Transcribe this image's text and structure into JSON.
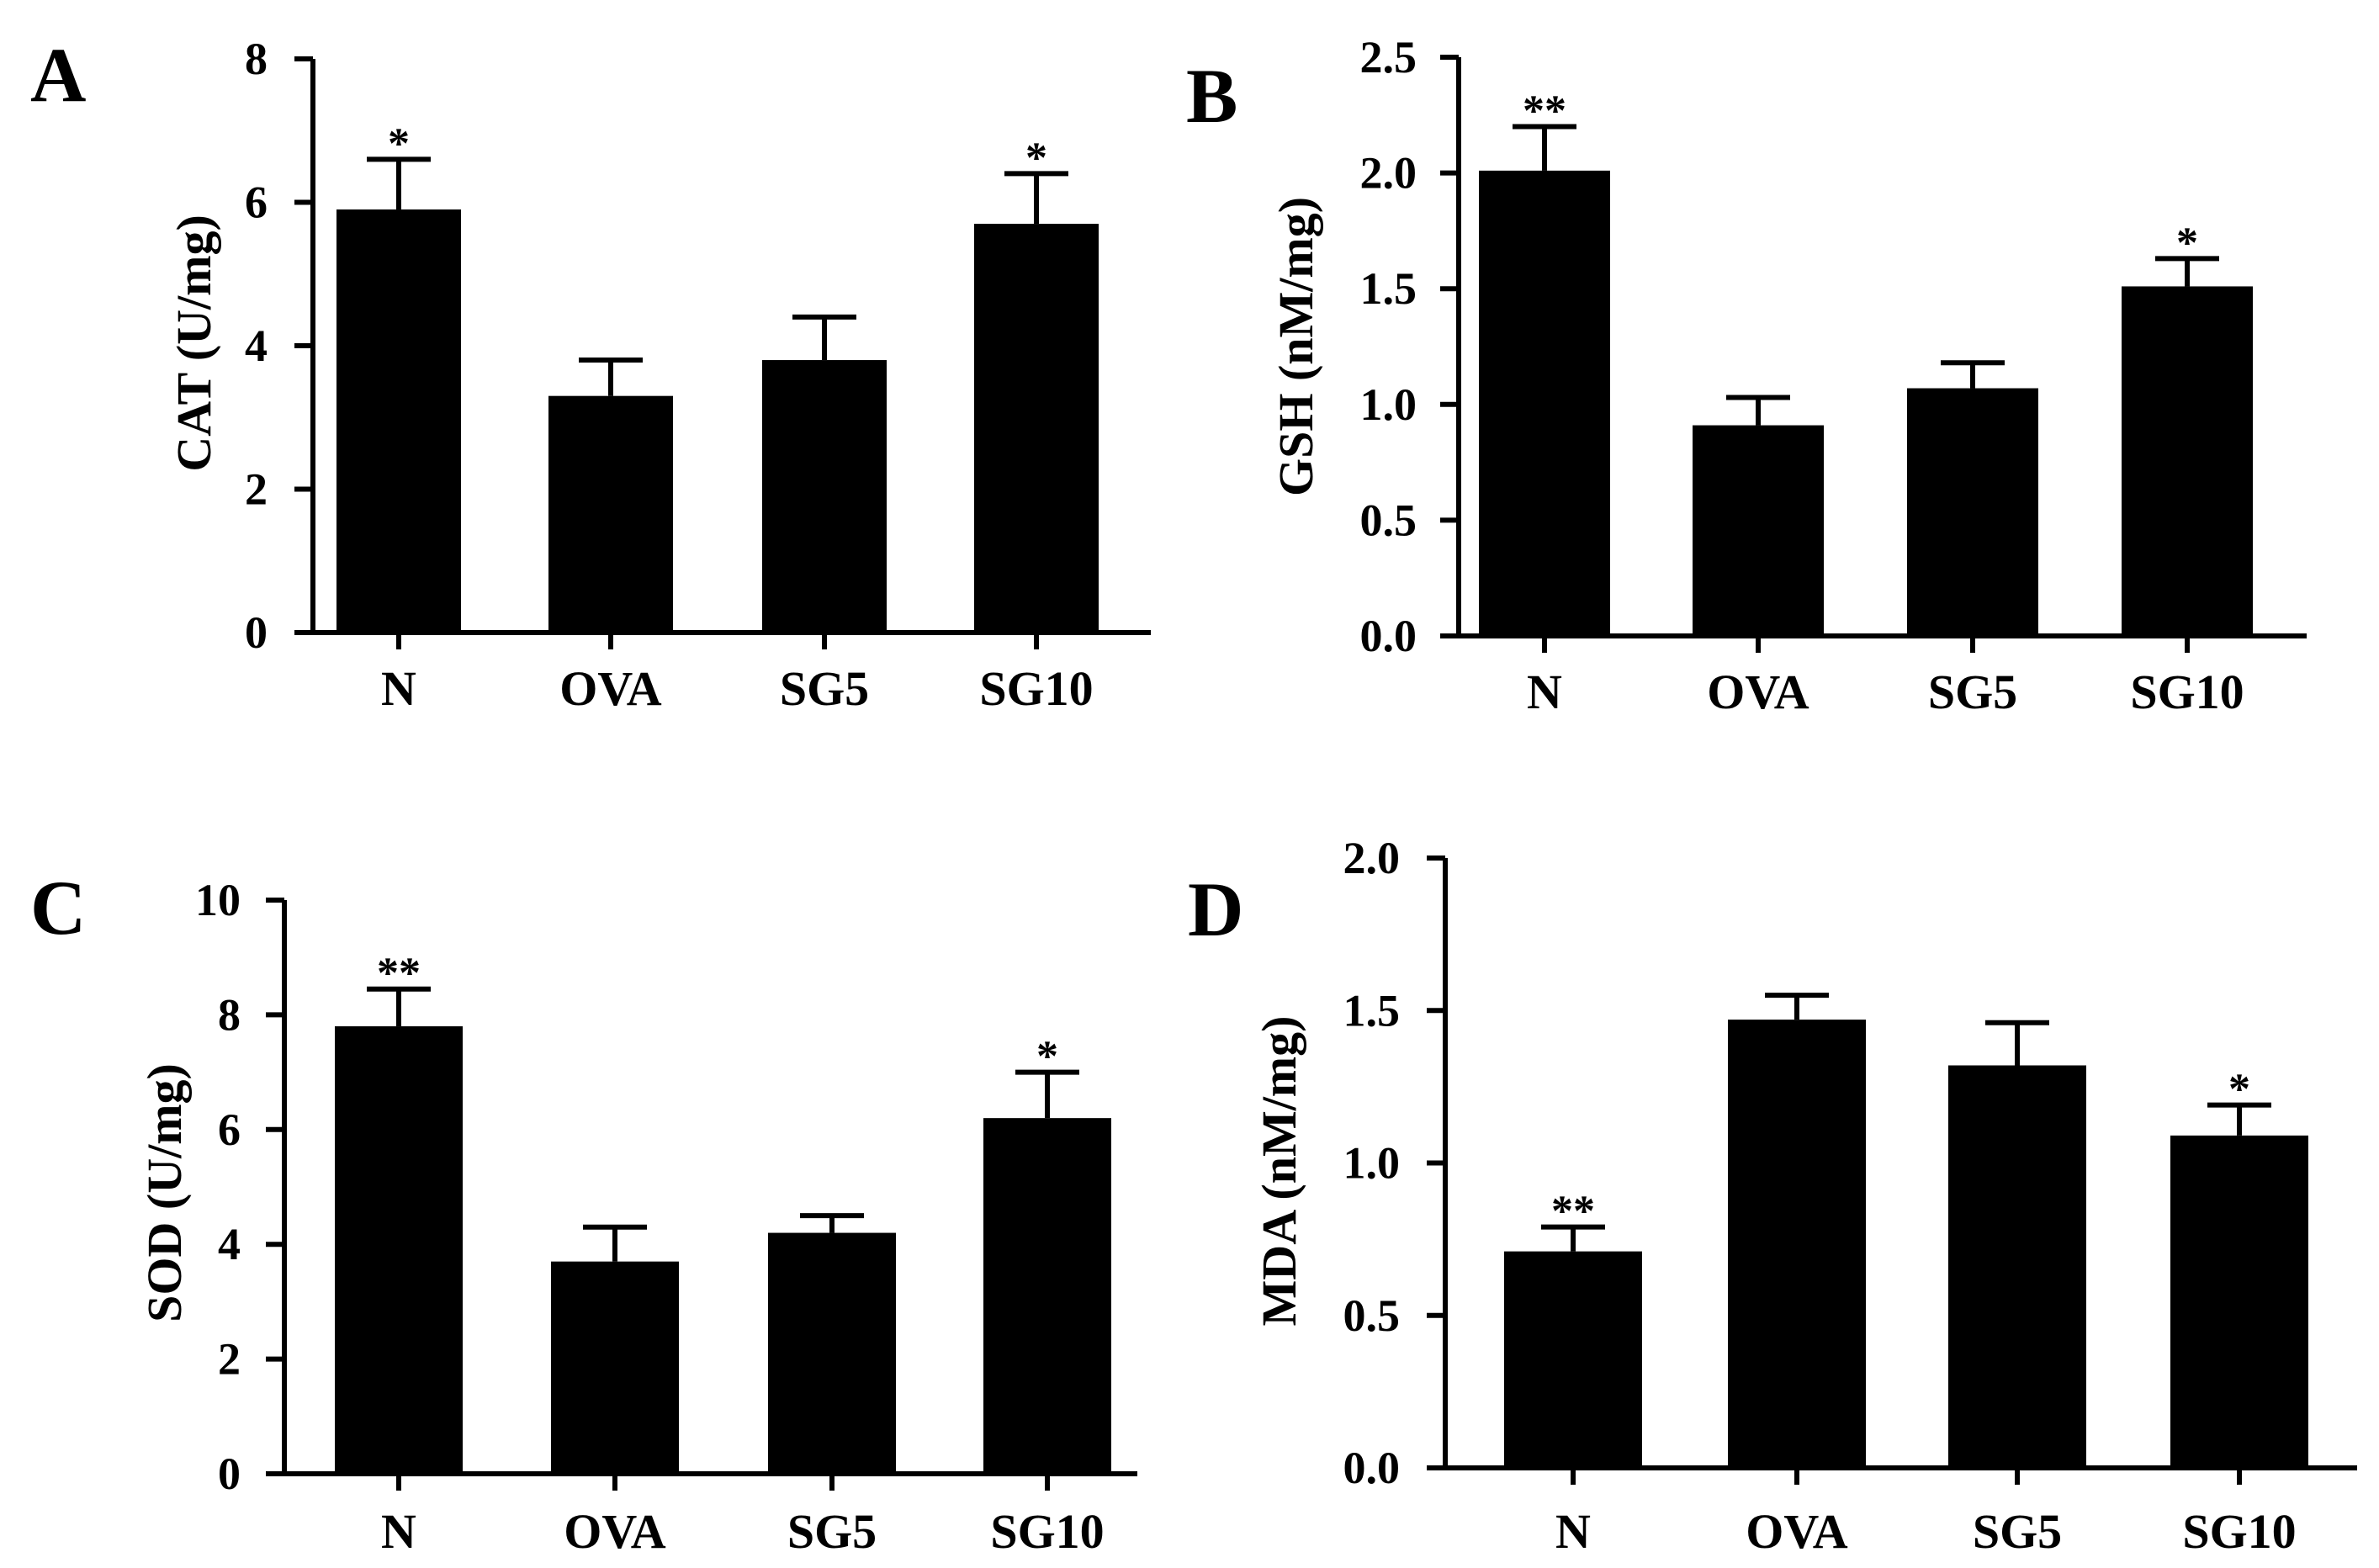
{
  "figure": {
    "colors": {
      "bar": "#000000",
      "axis": "#000000",
      "background": "#ffffff"
    }
  },
  "chart_data": [
    {
      "panel": "A",
      "type": "bar",
      "categories": [
        "N",
        "OVA",
        "SG5",
        "SG10"
      ],
      "values": [
        5.9,
        3.3,
        3.8,
        5.7
      ],
      "errors": [
        0.7,
        0.5,
        0.6,
        0.7
      ],
      "significance": [
        "*",
        "",
        "",
        "*"
      ],
      "title": "",
      "xlabel": "",
      "ylabel": "CAT (U/mg)",
      "ylim": [
        0,
        8
      ],
      "yticks": [
        0,
        2,
        4,
        6,
        8
      ],
      "ytick_labels": [
        "0",
        "2",
        "4",
        "6",
        "8"
      ]
    },
    {
      "panel": "B",
      "type": "bar",
      "categories": [
        "N",
        "OVA",
        "SG5",
        "SG10"
      ],
      "values": [
        2.01,
        0.91,
        1.07,
        1.51
      ],
      "errors": [
        0.19,
        0.12,
        0.11,
        0.12
      ],
      "significance": [
        "**",
        "",
        "",
        "*"
      ],
      "title": "",
      "xlabel": "",
      "ylabel": "GSH (nM/mg)",
      "ylim": [
        0,
        2.5
      ],
      "yticks": [
        0,
        0.5,
        1.0,
        1.5,
        2.0,
        2.5
      ],
      "ytick_labels": [
        "0.0",
        "0.5",
        "1.0",
        "1.5",
        "2.0",
        "2.5"
      ]
    },
    {
      "panel": "C",
      "type": "bar",
      "categories": [
        "N",
        "OVA",
        "SG5",
        "SG10"
      ],
      "values": [
        7.8,
        3.7,
        4.2,
        6.2
      ],
      "errors": [
        0.65,
        0.6,
        0.3,
        0.8
      ],
      "significance": [
        "**",
        "",
        "",
        "*"
      ],
      "title": "",
      "xlabel": "",
      "ylabel": "SOD (U/mg)",
      "ylim": [
        0,
        10
      ],
      "yticks": [
        0,
        2,
        4,
        6,
        8,
        10
      ],
      "ytick_labels": [
        "0",
        "2",
        "4",
        "6",
        "8",
        "10"
      ]
    },
    {
      "panel": "D",
      "type": "bar",
      "categories": [
        "N",
        "OVA",
        "SG5",
        "SG10"
      ],
      "values": [
        0.71,
        1.47,
        1.32,
        1.09
      ],
      "errors": [
        0.08,
        0.08,
        0.14,
        0.1
      ],
      "significance": [
        "**",
        "",
        "",
        "*"
      ],
      "title": "",
      "xlabel": "",
      "ylabel": "MDA (nM/mg)",
      "ylim": [
        0,
        2.0
      ],
      "yticks": [
        0,
        0.5,
        1.0,
        1.5,
        2.0
      ],
      "ytick_labels": [
        "0.0",
        "0.5",
        "1.0",
        "1.5",
        "2.0"
      ]
    }
  ]
}
